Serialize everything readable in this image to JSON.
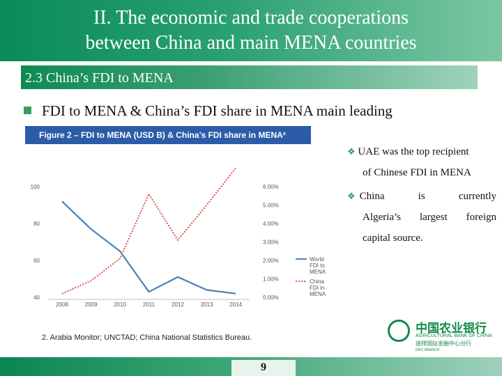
{
  "slide": {
    "title_line1": "II. The economic and trade cooperations",
    "title_line2": "between China and main MENA countries",
    "subtitle": "2.3 China’s FDI to MENA",
    "bullet": "FDI to MENA & China’s FDI share in MENA main leading",
    "figure_caption": "Figure 2 – FDI to MENA (USD B) & China’s FDI share in MENA²",
    "notes": [
      {
        "lines": [
          "UAE was the top recipient",
          "of Chinese FDI in MENA"
        ]
      },
      {
        "lines": [
          "China is currently",
          "Algeria’s largest foreign",
          "capital source."
        ]
      }
    ],
    "source": "2. Arabia Monitor; UNCTAD; China National Statistics Bureau.",
    "page_number": "9",
    "logo": {
      "zh": "中国农业银行",
      "en": "AGRICULTURAL BANK OF CHINA",
      "zh2": "迪拜国际金融中心分行",
      "en2": "DIFC BRANCH"
    },
    "colors": {
      "accent_green": "#138a4a",
      "figure_blue": "#2c5ca8"
    }
  },
  "chart_data": {
    "type": "line",
    "categories": [
      "2008",
      "2009",
      "2010",
      "2011",
      "2012",
      "2013",
      "2014"
    ],
    "series": [
      {
        "name": "World FDI to MENA",
        "axis": "left",
        "color": "#4e7fb5",
        "style": "solid",
        "values": [
          92,
          77,
          65,
          43,
          51,
          44,
          42
        ]
      },
      {
        "name": "China FDI in MENA",
        "axis": "right",
        "color": "#d9534f",
        "style": "dotted",
        "values": [
          0.2,
          0.9,
          2.1,
          5.6,
          3.1,
          5.0,
          7.0
        ]
      }
    ],
    "left_axis": {
      "ticks": [
        "100",
        "80",
        "60",
        "40"
      ],
      "range": [
        40,
        100
      ]
    },
    "right_axis": {
      "ticks": [
        "6.00%",
        "5.00%",
        "4.00%",
        "3.00%",
        "2.00%",
        "1.00%",
        "0.00%"
      ],
      "range": [
        0,
        6
      ]
    },
    "legend": [
      [
        "World",
        "FDI to",
        "MENA"
      ],
      [
        "China",
        "FDI in",
        "MENA"
      ]
    ],
    "legend_position": "right",
    "grid": false
  }
}
